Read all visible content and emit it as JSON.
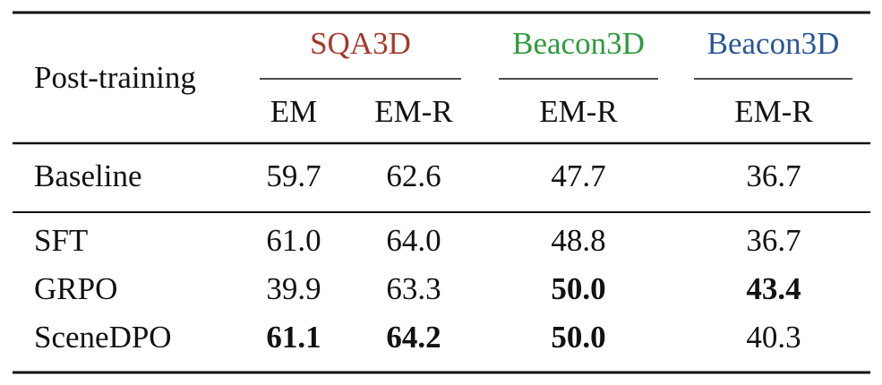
{
  "table": {
    "header": {
      "row_label": "Post-training",
      "groups": [
        {
          "name": "SQA3D",
          "color": "#a63a2c",
          "columns": [
            "EM",
            "EM-R"
          ]
        },
        {
          "name": "Beacon3D",
          "color": "#2f9a3e",
          "columns": [
            "EM-R"
          ]
        },
        {
          "name": "Beacon3D",
          "color": "#2b5597",
          "columns": [
            "EM-R"
          ]
        }
      ]
    },
    "sections": [
      [
        {
          "label": "Baseline",
          "cells": [
            "59.7",
            "62.6",
            "47.7",
            "36.7"
          ],
          "bold": [
            false,
            false,
            false,
            false
          ]
        }
      ],
      [
        {
          "label": "SFT",
          "cells": [
            "61.0",
            "64.0",
            "48.8",
            "36.7"
          ],
          "bold": [
            false,
            false,
            false,
            false
          ]
        },
        {
          "label": "GRPO",
          "cells": [
            "39.9",
            "63.3",
            "50.0",
            "43.4"
          ],
          "bold": [
            false,
            false,
            true,
            true
          ]
        },
        {
          "label": "SceneDPO",
          "cells": [
            "61.1",
            "64.2",
            "50.0",
            "40.3"
          ],
          "bold": [
            true,
            true,
            true,
            false
          ]
        }
      ]
    ]
  }
}
